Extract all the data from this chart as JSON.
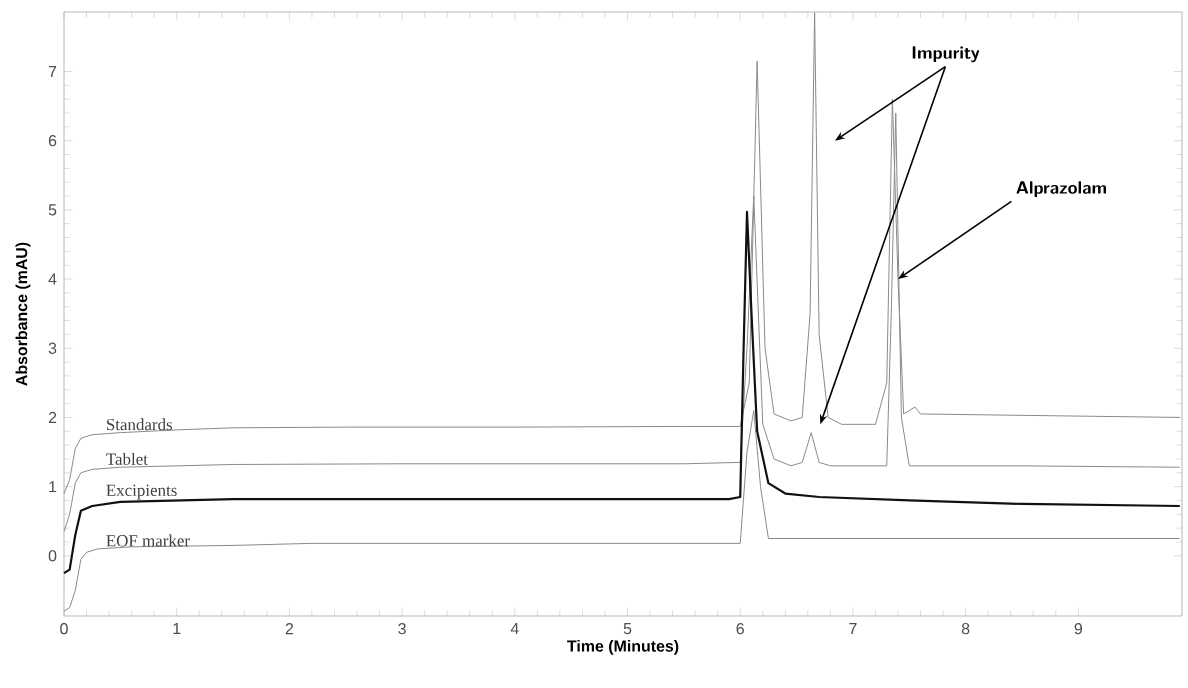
{
  "chart_data": {
    "type": "line",
    "xlabel": "Time (Minutes)",
    "ylabel": "Absorbance (mAU)",
    "xlim": [
      0,
      9.92
    ],
    "ylim": [
      -0.87,
      7.86
    ],
    "xticks": [
      0,
      1,
      2,
      3,
      4,
      5,
      6,
      7,
      8,
      9
    ],
    "yticks": [
      0,
      1,
      2,
      3,
      4,
      5,
      6,
      7
    ],
    "series": [
      {
        "name": "Standards",
        "color": "#8a8a8a",
        "x": [
          0,
          0.05,
          0.1,
          0.15,
          0.25,
          0.5,
          1.0,
          1.5,
          2.5,
          4,
          5.5,
          6.0,
          6.08,
          6.15,
          6.22,
          6.3,
          6.45,
          6.55,
          6.62,
          6.66,
          6.7,
          6.78,
          6.9,
          7.2,
          7.3,
          7.35,
          7.4,
          7.45,
          7.5,
          7.55,
          7.6,
          8.5,
          9.9
        ],
        "values": [
          0.9,
          1.1,
          1.55,
          1.7,
          1.75,
          1.78,
          1.82,
          1.85,
          1.86,
          1.86,
          1.87,
          1.87,
          2.5,
          7.15,
          3.0,
          2.05,
          1.95,
          2.0,
          3.5,
          7.85,
          3.2,
          2.0,
          1.9,
          1.9,
          2.5,
          6.6,
          4.0,
          2.05,
          2.1,
          2.15,
          2.05,
          2.03,
          2.0
        ]
      },
      {
        "name": "Tablet",
        "color": "#8a8a8a",
        "x": [
          0,
          0.05,
          0.1,
          0.15,
          0.25,
          0.5,
          1.5,
          3,
          5.5,
          6.0,
          6.06,
          6.12,
          6.2,
          6.3,
          6.45,
          6.55,
          6.63,
          6.7,
          6.8,
          7.3,
          7.34,
          7.38,
          7.43,
          7.5,
          8.5,
          9.9
        ],
        "values": [
          0.35,
          0.6,
          1.05,
          1.2,
          1.25,
          1.28,
          1.32,
          1.33,
          1.33,
          1.35,
          3.0,
          5.2,
          1.9,
          1.4,
          1.3,
          1.35,
          1.78,
          1.35,
          1.3,
          1.3,
          3.5,
          6.4,
          2.0,
          1.3,
          1.3,
          1.28
        ]
      },
      {
        "name": "Excipients",
        "color": "#111111",
        "x": [
          0,
          0.05,
          0.1,
          0.15,
          0.25,
          0.5,
          1.5,
          3,
          5.9,
          6.0,
          6.03,
          6.06,
          6.1,
          6.15,
          6.25,
          6.4,
          6.7,
          7.5,
          8.5,
          9.9
        ],
        "values": [
          -0.25,
          -0.2,
          0.3,
          0.65,
          0.72,
          0.78,
          0.82,
          0.82,
          0.82,
          0.85,
          3.0,
          4.97,
          3.5,
          1.8,
          1.05,
          0.9,
          0.85,
          0.8,
          0.75,
          0.72
        ]
      },
      {
        "name": "EOF marker",
        "color": "#8a8a8a",
        "x": [
          0,
          0.05,
          0.1,
          0.15,
          0.2,
          0.3,
          0.6,
          1.5,
          2.2,
          4,
          6.0,
          6.06,
          6.12,
          6.18,
          6.25,
          7,
          9.9
        ],
        "values": [
          -0.8,
          -0.75,
          -0.5,
          -0.05,
          0.05,
          0.1,
          0.13,
          0.15,
          0.18,
          0.18,
          0.18,
          1.5,
          2.1,
          1.0,
          0.25,
          0.25,
          0.25
        ]
      }
    ],
    "annotations": [
      {
        "text": "Impurity",
        "x": 6.71,
        "y": 1.9
      },
      {
        "text": "Alprazolam",
        "x": 7.4,
        "y": 4.0
      }
    ]
  }
}
